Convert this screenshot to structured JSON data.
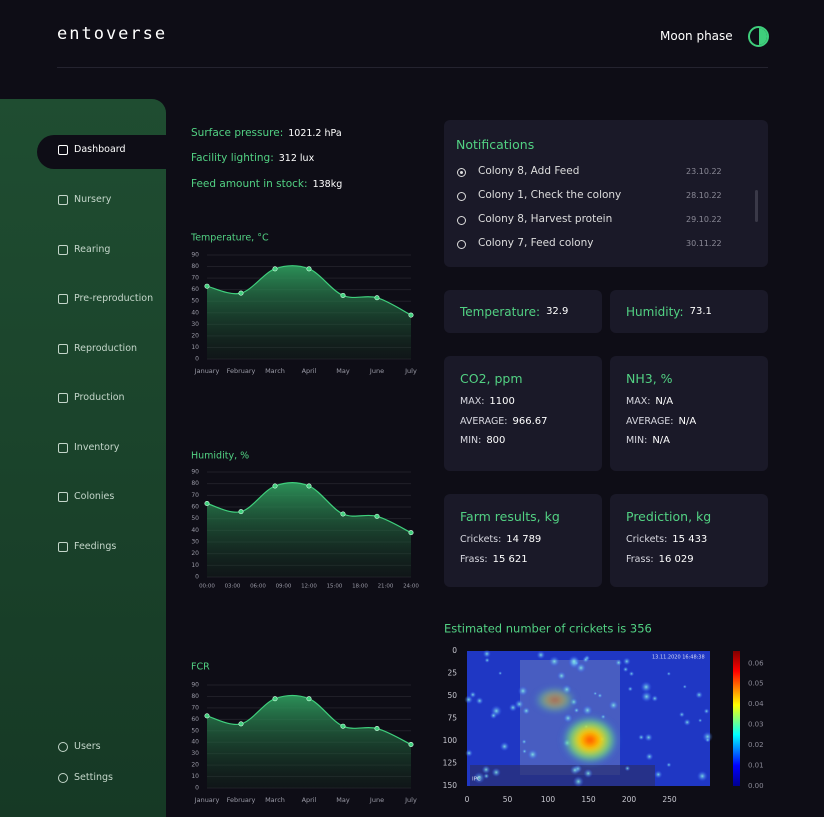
{
  "header": {
    "logo": "entoverse",
    "moon_phase": "Moon phase"
  },
  "nav": [
    "Dashboard",
    "Nursery",
    "Rearing",
    "Pre-reproduction",
    "Reproduction",
    "Production",
    "Inventory",
    "Colonies",
    "Feedings"
  ],
  "nav_active": 0,
  "nav_bottom": [
    "Users",
    "Settings"
  ],
  "stats": [
    {
      "label": "Surface pressure:",
      "value": "1021.2 hPa"
    },
    {
      "label": "Facility lighting:",
      "value": "312 lux"
    },
    {
      "label": "Feed amount in stock:",
      "value": "138kg"
    }
  ],
  "notifications": {
    "title": "Notifications",
    "selected": 0,
    "items": [
      {
        "text": "Colony 8, Add Feed",
        "date": "23.10.22"
      },
      {
        "text": "Colony 1, Check the colony",
        "date": "28.10.22"
      },
      {
        "text": "Colony 8, Harvest protein",
        "date": "29.10.22"
      },
      {
        "text": "Colony 7, Feed colony",
        "date": "30.11.22"
      }
    ]
  },
  "readings": [
    {
      "label": "Temperature:",
      "value": "32.9"
    },
    {
      "label": "Humidity:",
      "value": "73.1"
    }
  ],
  "gas_cards": [
    {
      "title": "CO2, ppm",
      "rows": [
        {
          "label": "MAX:",
          "value": "1100"
        },
        {
          "label": "AVERAGE:",
          "value": "966.67"
        },
        {
          "label": "MIN:",
          "value": "800"
        }
      ]
    },
    {
      "title": "NH3, %",
      "rows": [
        {
          "label": "MAX:",
          "value": "N/A"
        },
        {
          "label": "AVERAGE:",
          "value": "N/A"
        },
        {
          "label": "MIN:",
          "value": "N/A"
        }
      ]
    }
  ],
  "result_cards": [
    {
      "title": "Farm results, kg",
      "rows": [
        {
          "label": "Crickets:",
          "value": "14 789"
        },
        {
          "label": "Frass:",
          "value": "15 621"
        }
      ]
    },
    {
      "title": "Prediction, kg",
      "rows": [
        {
          "label": "Crickets:",
          "value": "15 433"
        },
        {
          "label": "Frass:",
          "value": "16 029"
        }
      ]
    }
  ],
  "chart_data": [
    {
      "type": "line",
      "title": "Temperature, °C",
      "color": "#3fcf7c",
      "categories": [
        "January",
        "February",
        "March",
        "April",
        "May",
        "June",
        "July"
      ],
      "values": [
        63,
        57,
        78,
        78,
        55,
        53,
        38
      ],
      "ylim": [
        0,
        90
      ],
      "yticks": [
        0,
        10,
        20,
        30,
        40,
        50,
        60,
        70,
        80,
        90
      ],
      "grid": true
    },
    {
      "type": "line",
      "title": "Humidity, %",
      "color": "#3fcf7c",
      "x": [
        0,
        4,
        8,
        12,
        16,
        20,
        24
      ],
      "values": [
        63,
        56,
        78,
        78,
        54,
        52,
        38
      ],
      "xlim": [
        0,
        24
      ],
      "xticks": [
        {
          "value": 0,
          "label": "00:00"
        },
        {
          "value": 3,
          "label": "03:00"
        },
        {
          "value": 6,
          "label": "06:00"
        },
        {
          "value": 9,
          "label": "09:00"
        },
        {
          "value": 12,
          "label": "12:00"
        },
        {
          "value": 15,
          "label": "15:00"
        },
        {
          "value": 18,
          "label": "18:00"
        },
        {
          "value": 21,
          "label": "21:00"
        },
        {
          "value": 24,
          "label": "24:00"
        }
      ],
      "ylim": [
        0,
        90
      ],
      "yticks": [
        0,
        10,
        20,
        30,
        40,
        50,
        60,
        70,
        80,
        90
      ],
      "grid": true
    },
    {
      "type": "line",
      "title": "FCR",
      "color": "#3fcf7c",
      "categories": [
        "January",
        "February",
        "March",
        "April",
        "May",
        "June",
        "July"
      ],
      "values": [
        63,
        56,
        78,
        78,
        54,
        52,
        38
      ],
      "ylim": [
        0,
        90
      ],
      "yticks": [
        0,
        10,
        20,
        30,
        40,
        50,
        60,
        70,
        80,
        90
      ],
      "grid": true
    },
    {
      "type": "heatmap",
      "title": "Estimated number of crickets is 356",
      "xlim": [
        0,
        300
      ],
      "xticks": [
        0,
        50,
        100,
        150,
        200,
        250
      ],
      "ylim": [
        0,
        150
      ],
      "y_inverted": true,
      "yticks": [
        0,
        25,
        50,
        75,
        100,
        125,
        150
      ],
      "colorbar": {
        "lim": [
          0,
          0.066
        ],
        "ticks": [
          {
            "value": 0,
            "label": "0.00"
          },
          0.01,
          0.02,
          0.03,
          0.04,
          0.05,
          0.06
        ]
      },
      "annotations": [
        "13.11.2020 16:48:38",
        "IPC"
      ]
    }
  ]
}
